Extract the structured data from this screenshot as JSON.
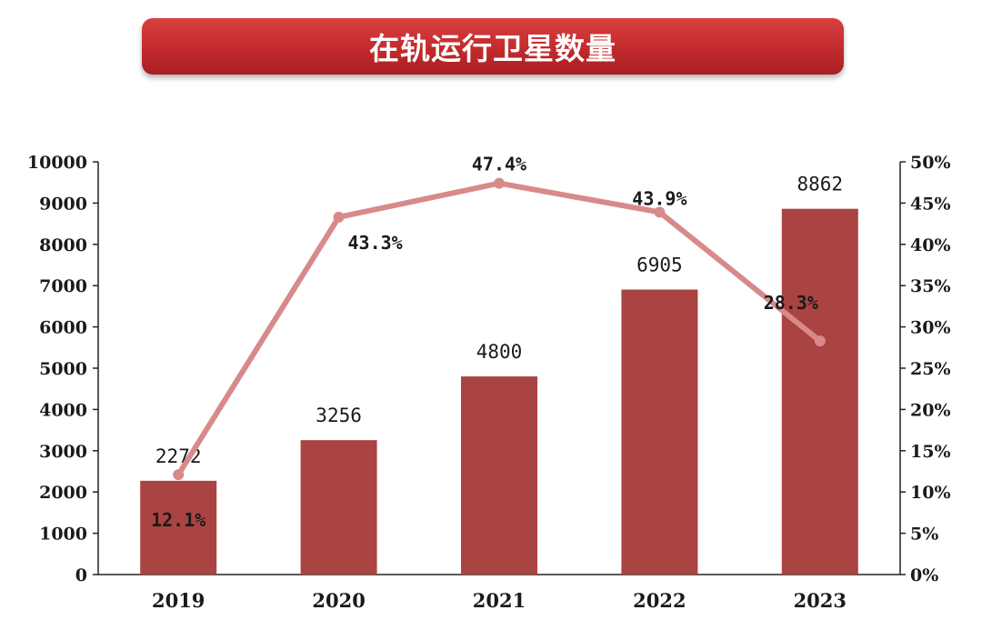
{
  "title": "在轨运行卫星数量",
  "chart_data": {
    "type": "bar",
    "categories": [
      "2019",
      "2020",
      "2021",
      "2022",
      "2023"
    ],
    "series": [
      {
        "type": "bar",
        "axis": "left",
        "values": [
          2272,
          3256,
          4800,
          6905,
          8862
        ],
        "labels": [
          "2272",
          "3256",
          "4800",
          "6905",
          "8862"
        ],
        "color": "#a94442"
      },
      {
        "type": "line",
        "axis": "right",
        "values": [
          12.1,
          43.3,
          47.4,
          43.9,
          28.3
        ],
        "labels": [
          "12.1%",
          "43.3%",
          "47.4%",
          "43.9%",
          "28.3%"
        ],
        "color": "#d88a8a"
      }
    ],
    "y_left": {
      "range": [
        0,
        10000
      ],
      "ticks": [
        "0",
        "1000",
        "2000",
        "3000",
        "4000",
        "5000",
        "6000",
        "7000",
        "8000",
        "9000",
        "10000"
      ]
    },
    "y_right": {
      "range": [
        0,
        50
      ],
      "ticks": [
        "0%",
        "5%",
        "10%",
        "15%",
        "20%",
        "25%",
        "30%",
        "35%",
        "40%",
        "45%",
        "50%"
      ]
    },
    "grid": false,
    "legend": "none"
  }
}
